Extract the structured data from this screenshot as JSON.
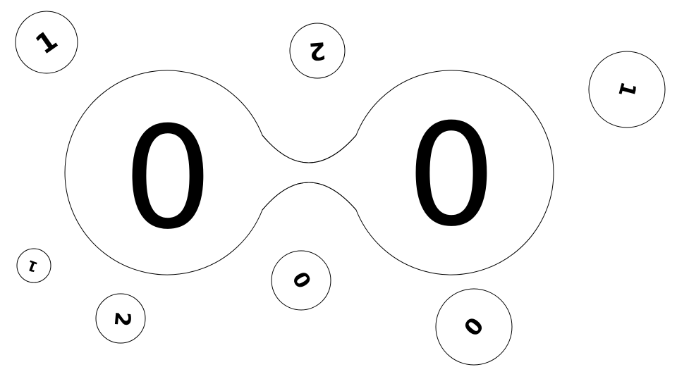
{
  "board": {
    "score_left": "0",
    "score_right": "0"
  },
  "bubbles": [
    {
      "digit": "1"
    },
    {
      "digit": "2"
    },
    {
      "digit": "1"
    },
    {
      "digit": "1"
    },
    {
      "digit": "2"
    },
    {
      "digit": "0"
    },
    {
      "digit": "0"
    }
  ],
  "colors": {
    "background": "#ffffff",
    "stroke": "#000000",
    "digit": "#000000"
  }
}
